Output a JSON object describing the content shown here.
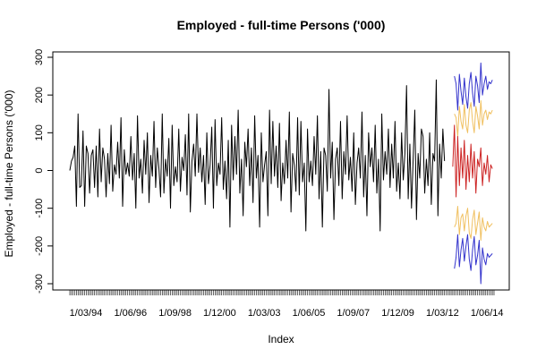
{
  "chart_data": {
    "type": "line",
    "title": "Employed - full-time Persons ('000)",
    "xlabel": "Index",
    "ylabel": "Employed - full-time Persons ('000)",
    "ylim": [
      -320,
      300
    ],
    "grid": false,
    "legend": "none",
    "y_ticks": [
      -300,
      -200,
      -100,
      0,
      100,
      200,
      300
    ],
    "x_tick_labels": [
      "1/03/94",
      "1/06/96",
      "1/09/98",
      "1/12/00",
      "1/03/03",
      "1/06/05",
      "1/09/07",
      "1/12/09",
      "1/03/12",
      "1/06/14"
    ],
    "x_tick_index": [
      1,
      28,
      55,
      82,
      109,
      136,
      163,
      190,
      217,
      244
    ],
    "n_index": 258,
    "history_end_index": 233,
    "series": [
      {
        "color": "#000000",
        "start_index": 1,
        "values": [
          0,
          25,
          35,
          65,
          -95,
          150,
          -45,
          -40,
          105,
          -95,
          65,
          45,
          -60,
          40,
          55,
          -45,
          65,
          -70,
          110,
          -30,
          60,
          30,
          -70,
          45,
          -35,
          120,
          -55,
          15,
          -10,
          75,
          -20,
          140,
          -95,
          55,
          -10,
          20,
          -15,
          90,
          -25,
          45,
          -100,
          145,
          -20,
          30,
          -60,
          80,
          -10,
          100,
          -85,
          40,
          -15,
          130,
          -45,
          60,
          5,
          -70,
          150,
          -60,
          30,
          -15,
          85,
          -100,
          120,
          -40,
          10,
          -30,
          110,
          -55,
          35,
          0,
          95,
          -65,
          150,
          -110,
          25,
          70,
          -15,
          150,
          -5,
          60,
          -30,
          40,
          -90,
          100,
          -35,
          15,
          115,
          -100,
          135,
          -40,
          20,
          -10,
          140,
          -50,
          25,
          -75,
          80,
          -150,
          120,
          -25,
          90,
          -10,
          160,
          -60,
          30,
          -120,
          75,
          10,
          110,
          -40,
          60,
          -85,
          145,
          -20,
          40,
          -150,
          100,
          -30,
          15,
          50,
          -120,
          160,
          -35,
          130,
          -15,
          65,
          -45,
          125,
          -80,
          20,
          -35,
          80,
          -20,
          155,
          -110,
          45,
          15,
          -55,
          140,
          -65,
          130,
          -30,
          20,
          -160,
          110,
          -30,
          25,
          -40,
          90,
          -10,
          145,
          -75,
          50,
          -150,
          60,
          40,
          -55,
          215,
          -20,
          75,
          -130,
          30,
          60,
          -40,
          130,
          -75,
          50,
          -10,
          145,
          -25,
          35,
          -55,
          100,
          -90,
          20,
          60,
          -20,
          155,
          -70,
          40,
          -120,
          100,
          10,
          60,
          -30,
          120,
          -60,
          30,
          -160,
          150,
          -25,
          50,
          -10,
          110,
          -45,
          70,
          -20,
          130,
          -55,
          20,
          -75,
          100,
          -25,
          45,
          225,
          -75,
          70,
          -100,
          30,
          160,
          -130,
          45,
          -20,
          110,
          90,
          -60,
          30,
          -40,
          100,
          -90,
          45,
          25,
          240,
          -120,
          70,
          -20,
          110,
          25
        ]
      },
      {
        "color": "#cc2222",
        "start_index": 233,
        "values": [
          10,
          120,
          -70,
          90,
          -40,
          60,
          -20,
          80,
          -50,
          40,
          -30,
          70,
          -20,
          50,
          -60,
          30,
          10,
          60,
          -40,
          20,
          -10,
          40,
          -30,
          15,
          5
        ]
      },
      {
        "color": "#f0c060",
        "start_index": 234,
        "values": [
          150,
          140,
          90,
          170,
          130,
          110,
          175,
          120,
          100,
          160,
          180,
          130,
          100,
          170,
          145,
          110,
          185,
          120,
          150,
          160,
          135,
          155,
          150,
          160
        ]
      },
      {
        "color": "#f0c060",
        "start_index": 234,
        "values": [
          -150,
          -140,
          -95,
          -170,
          -125,
          -115,
          -160,
          -120,
          -100,
          -165,
          -180,
          -130,
          -105,
          -170,
          -140,
          -110,
          -185,
          -125,
          -150,
          -160,
          -135,
          -150,
          -145,
          -140
        ]
      },
      {
        "color": "#3333cc",
        "start_index": 234,
        "values": [
          250,
          230,
          160,
          255,
          210,
          175,
          245,
          195,
          165,
          230,
          260,
          205,
          170,
          250,
          225,
          180,
          285,
          200,
          230,
          250,
          215,
          235,
          230,
          240
        ]
      },
      {
        "color": "#3333cc",
        "start_index": 234,
        "values": [
          -260,
          -230,
          -170,
          -255,
          -210,
          -180,
          -240,
          -200,
          -170,
          -235,
          -265,
          -210,
          -175,
          -250,
          -225,
          -185,
          -300,
          -205,
          -235,
          -250,
          -220,
          -230,
          -225,
          -220
        ]
      }
    ]
  }
}
